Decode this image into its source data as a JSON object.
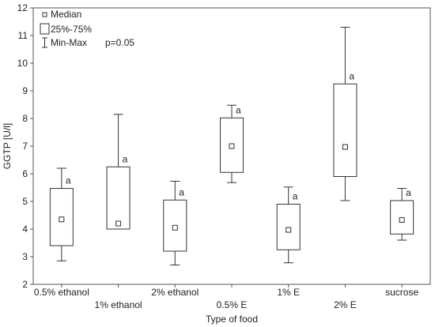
{
  "chart_data": {
    "type": "boxplot",
    "xlabel": "Type of food",
    "ylabel": "GGTP [U/l]",
    "ylim": [
      2,
      12
    ],
    "yticks": [
      2,
      3,
      4,
      5,
      6,
      7,
      8,
      9,
      10,
      11,
      12
    ],
    "grid": false,
    "legend": {
      "position": "top-left",
      "entries": [
        "Median",
        "25%-75%",
        "Min-Max"
      ]
    },
    "annotation": "p=0.05",
    "categories": [
      "0.5% ethanol",
      "1% ethanol",
      "2% ethanol",
      "0.5% E",
      "1% E",
      "2% E",
      "sucrose"
    ],
    "boxes": [
      {
        "category": "0.5% ethanol",
        "min": 2.85,
        "q1": 3.4,
        "median": 4.35,
        "q3": 5.47,
        "max": 6.2,
        "label": "a"
      },
      {
        "category": "1% ethanol",
        "min": 4.0,
        "q1": 4.0,
        "median": 4.2,
        "q3": 6.25,
        "max": 8.15,
        "label": "a"
      },
      {
        "category": "2% ethanol",
        "min": 2.7,
        "q1": 3.2,
        "median": 4.05,
        "q3": 5.05,
        "max": 5.73,
        "label": "a"
      },
      {
        "category": "0.5% E",
        "min": 5.68,
        "q1": 6.05,
        "median": 7.0,
        "q3": 8.02,
        "max": 8.48,
        "label": "a"
      },
      {
        "category": "1% E",
        "min": 2.78,
        "q1": 3.25,
        "median": 3.97,
        "q3": 4.9,
        "max": 5.52,
        "label": "a"
      },
      {
        "category": "2% E",
        "min": 5.03,
        "q1": 5.9,
        "median": 6.97,
        "q3": 9.25,
        "max": 11.3,
        "label": "a"
      },
      {
        "category": "sucrose",
        "min": 3.6,
        "q1": 3.82,
        "median": 4.33,
        "q3": 5.03,
        "max": 5.47,
        "label": "a"
      }
    ]
  }
}
